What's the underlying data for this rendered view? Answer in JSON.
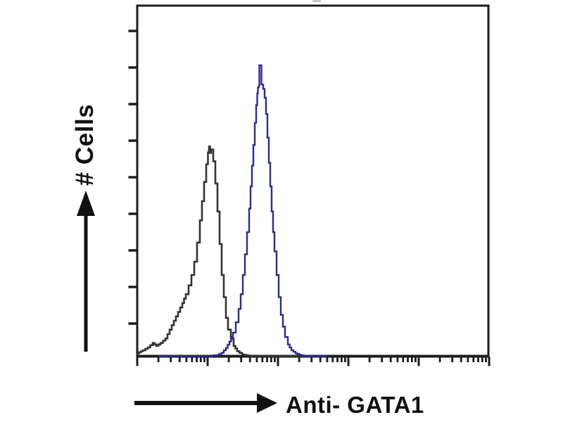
{
  "axes": {
    "y_label": "# Cells",
    "x_label": "Anti- GATA1",
    "x_scale": "log",
    "x_decades": 5,
    "y_tick_count": 9,
    "numeric_tick_labels_shown": false
  },
  "icons": {
    "y_axis_direction": "up-arrow-icon",
    "x_axis_direction": "right-arrow-icon"
  },
  "colors": {
    "background": "#ffffff",
    "axis": "#1c1c1c",
    "text": "#111111",
    "black_curve": "#333333",
    "blue_curve": "#2b2b90"
  },
  "chart_data": {
    "type": "line",
    "subtype": "flow-cytometry-overlay-histogram",
    "title": "",
    "xlabel": "Anti- GATA1",
    "ylabel": "# Cells",
    "x_axis_note": "log fluorescence intensity, 5 unlabeled decades with log minor ticks",
    "y_axis_note": "relative cell count, 9 unlabeled ticks",
    "xlim": [
      0,
      5
    ],
    "ylim": [
      0,
      1.05
    ],
    "grid": false,
    "legend": "none",
    "series": [
      {
        "name": "black-curve",
        "color": "#333333",
        "peak_x_decades": 1.02,
        "peak_height": 0.71,
        "points": [
          [
            0.0,
            0.01
          ],
          [
            0.08,
            0.02
          ],
          [
            0.15,
            0.03
          ],
          [
            0.22,
            0.045
          ],
          [
            0.27,
            0.035
          ],
          [
            0.33,
            0.045
          ],
          [
            0.4,
            0.06
          ],
          [
            0.46,
            0.09
          ],
          [
            0.52,
            0.12
          ],
          [
            0.58,
            0.15
          ],
          [
            0.64,
            0.18
          ],
          [
            0.69,
            0.21
          ],
          [
            0.73,
            0.24
          ],
          [
            0.77,
            0.275
          ],
          [
            0.81,
            0.32
          ],
          [
            0.85,
            0.385
          ],
          [
            0.89,
            0.46
          ],
          [
            0.92,
            0.525
          ],
          [
            0.95,
            0.59
          ],
          [
            0.98,
            0.65
          ],
          [
            1.005,
            0.69
          ],
          [
            1.02,
            0.71
          ],
          [
            1.035,
            0.688
          ],
          [
            1.05,
            0.7
          ],
          [
            1.08,
            0.66
          ],
          [
            1.11,
            0.585
          ],
          [
            1.14,
            0.49
          ],
          [
            1.17,
            0.38
          ],
          [
            1.2,
            0.275
          ],
          [
            1.23,
            0.2
          ],
          [
            1.26,
            0.13
          ],
          [
            1.29,
            0.09
          ],
          [
            1.33,
            0.06
          ],
          [
            1.37,
            0.035
          ],
          [
            1.42,
            0.017
          ],
          [
            1.49,
            0.006
          ],
          [
            1.6,
            0.001
          ],
          [
            2.7,
            0.0
          ]
        ]
      },
      {
        "name": "blue-curve",
        "color": "#2b2b90",
        "peak_x_decades": 1.745,
        "peak_height": 0.985,
        "points": [
          [
            0.3,
            0.0
          ],
          [
            1.0,
            0.001
          ],
          [
            1.13,
            0.004
          ],
          [
            1.2,
            0.012
          ],
          [
            1.26,
            0.028
          ],
          [
            1.31,
            0.05
          ],
          [
            1.36,
            0.08
          ],
          [
            1.4,
            0.115
          ],
          [
            1.44,
            0.16
          ],
          [
            1.47,
            0.21
          ],
          [
            1.5,
            0.275
          ],
          [
            1.53,
            0.345
          ],
          [
            1.56,
            0.42
          ],
          [
            1.59,
            0.5
          ],
          [
            1.61,
            0.575
          ],
          [
            1.63,
            0.645
          ],
          [
            1.65,
            0.715
          ],
          [
            1.67,
            0.79
          ],
          [
            1.69,
            0.85
          ],
          [
            1.705,
            0.89
          ],
          [
            1.715,
            0.91
          ],
          [
            1.73,
            0.917
          ],
          [
            1.735,
            0.985
          ],
          [
            1.755,
            0.985
          ],
          [
            1.765,
            0.92
          ],
          [
            1.79,
            0.905
          ],
          [
            1.81,
            0.875
          ],
          [
            1.83,
            0.82
          ],
          [
            1.85,
            0.74
          ],
          [
            1.87,
            0.655
          ],
          [
            1.89,
            0.575
          ],
          [
            1.91,
            0.49
          ],
          [
            1.93,
            0.42
          ],
          [
            1.95,
            0.355
          ],
          [
            1.98,
            0.275
          ],
          [
            2.01,
            0.2
          ],
          [
            2.04,
            0.14
          ],
          [
            2.07,
            0.1
          ],
          [
            2.1,
            0.065
          ],
          [
            2.14,
            0.04
          ],
          [
            2.19,
            0.02
          ],
          [
            2.25,
            0.01
          ],
          [
            2.33,
            0.003
          ],
          [
            2.45,
            0.0
          ],
          [
            2.7,
            0.0
          ]
        ]
      }
    ]
  }
}
